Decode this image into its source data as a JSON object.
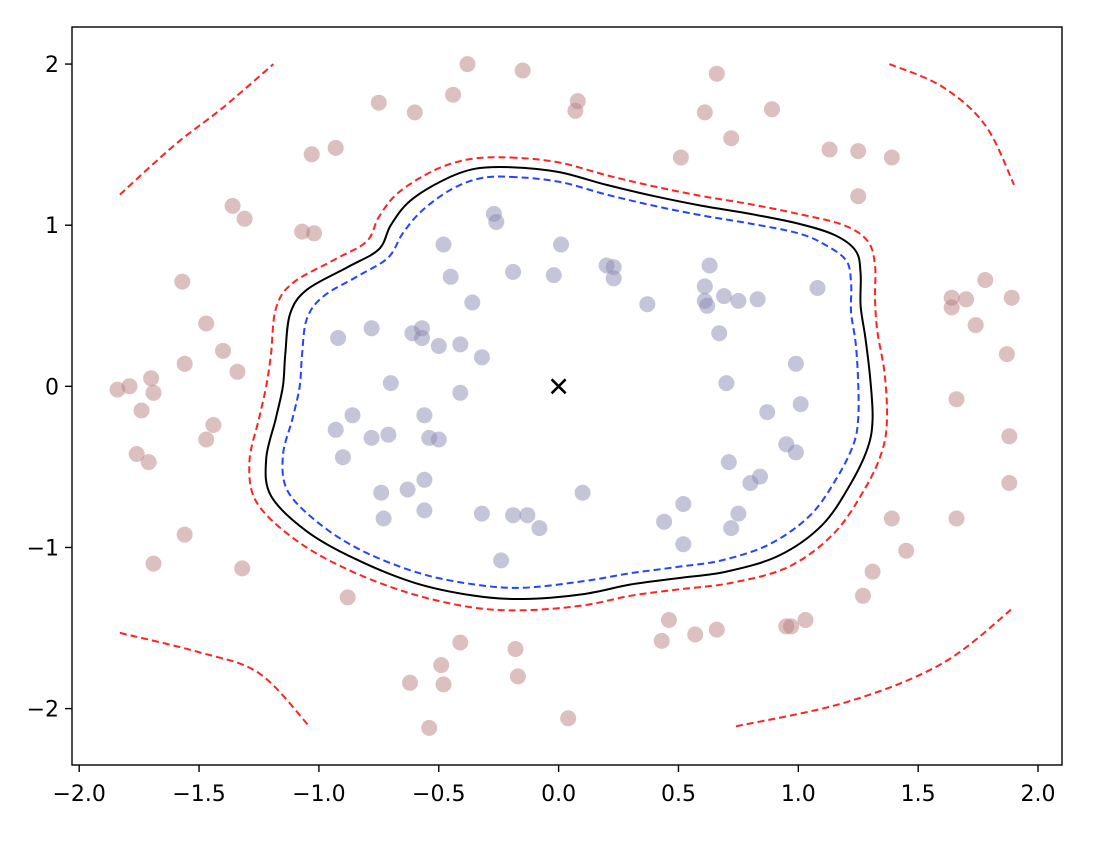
{
  "chart_data": {
    "type": "scatter",
    "title": "",
    "xlabel": "",
    "ylabel": "",
    "xlim": [
      -2.03,
      2.1
    ],
    "ylim": [
      -2.35,
      2.23
    ],
    "grid": false,
    "x_ticks": [
      {
        "value": -2.0,
        "label": "−2.0"
      },
      {
        "value": -1.5,
        "label": "−1.5"
      },
      {
        "value": -1.0,
        "label": "−1.0"
      },
      {
        "value": -0.5,
        "label": "−0.5"
      },
      {
        "value": 0.0,
        "label": "0.0"
      },
      {
        "value": 0.5,
        "label": "0.5"
      },
      {
        "value": 1.0,
        "label": "1.0"
      },
      {
        "value": 1.5,
        "label": "1.5"
      },
      {
        "value": 2.0,
        "label": "2.0"
      }
    ],
    "y_ticks": [
      {
        "value": 2,
        "label": "2"
      },
      {
        "value": 1,
        "label": "1"
      },
      {
        "value": 0,
        "label": "0"
      },
      {
        "value": -1,
        "label": "−1"
      },
      {
        "value": -2,
        "label": "−2"
      }
    ],
    "colors": {
      "inner_points": "#8C8CB4",
      "outer_points": "#B98080",
      "decision_boundary": "#000000",
      "inner_margin": "#2244FF",
      "outer_margin": "#FF2222",
      "center_marker": "#000000"
    },
    "center_marker": {
      "x": 0.0,
      "y": 0.0,
      "symbol": "x"
    },
    "series": [
      {
        "class": "inner",
        "points": [
          [
            -0.27,
            1.07
          ],
          [
            -0.26,
            1.02
          ],
          [
            -0.48,
            0.88
          ],
          [
            0.01,
            0.88
          ],
          [
            -0.19,
            0.71
          ],
          [
            -0.02,
            0.69
          ],
          [
            -0.45,
            0.68
          ],
          [
            0.2,
            0.75
          ],
          [
            0.23,
            0.74
          ],
          [
            0.23,
            0.67
          ],
          [
            0.63,
            0.75
          ],
          [
            0.61,
            0.62
          ],
          [
            0.61,
            0.53
          ],
          [
            0.62,
            0.5
          ],
          [
            0.69,
            0.56
          ],
          [
            0.75,
            0.53
          ],
          [
            0.83,
            0.54
          ],
          [
            1.08,
            0.61
          ],
          [
            0.37,
            0.51
          ],
          [
            -0.36,
            0.52
          ],
          [
            -0.92,
            0.3
          ],
          [
            -0.78,
            0.36
          ],
          [
            -0.61,
            0.33
          ],
          [
            -0.57,
            0.36
          ],
          [
            -0.57,
            0.3
          ],
          [
            -0.5,
            0.25
          ],
          [
            -0.41,
            0.26
          ],
          [
            -0.32,
            0.18
          ],
          [
            0.67,
            0.33
          ],
          [
            0.99,
            0.14
          ],
          [
            -0.7,
            0.02
          ],
          [
            -0.41,
            -0.04
          ],
          [
            0.7,
            0.02
          ],
          [
            1.01,
            -0.11
          ],
          [
            -0.86,
            -0.18
          ],
          [
            -0.56,
            -0.18
          ],
          [
            -0.93,
            -0.27
          ],
          [
            -0.78,
            -0.32
          ],
          [
            -0.71,
            -0.3
          ],
          [
            -0.54,
            -0.32
          ],
          [
            -0.5,
            -0.33
          ],
          [
            0.87,
            -0.16
          ],
          [
            -0.9,
            -0.44
          ],
          [
            0.95,
            -0.36
          ],
          [
            0.99,
            -0.41
          ],
          [
            0.71,
            -0.47
          ],
          [
            -0.74,
            -0.66
          ],
          [
            -0.63,
            -0.64
          ],
          [
            -0.56,
            -0.58
          ],
          [
            0.1,
            -0.66
          ],
          [
            0.8,
            -0.6
          ],
          [
            0.84,
            -0.56
          ],
          [
            -0.73,
            -0.82
          ],
          [
            -0.56,
            -0.77
          ],
          [
            -0.32,
            -0.79
          ],
          [
            -0.19,
            -0.8
          ],
          [
            -0.13,
            -0.8
          ],
          [
            -0.08,
            -0.88
          ],
          [
            0.44,
            -0.84
          ],
          [
            0.52,
            -0.73
          ],
          [
            0.75,
            -0.79
          ],
          [
            0.72,
            -0.88
          ],
          [
            0.52,
            -0.98
          ],
          [
            -0.24,
            -1.08
          ]
        ]
      },
      {
        "class": "outer",
        "points": [
          [
            -0.38,
            2.0
          ],
          [
            -0.15,
            1.96
          ],
          [
            0.66,
            1.94
          ],
          [
            -0.44,
            1.81
          ],
          [
            -0.75,
            1.76
          ],
          [
            -0.6,
            1.7
          ],
          [
            0.08,
            1.77
          ],
          [
            0.07,
            1.71
          ],
          [
            0.61,
            1.7
          ],
          [
            0.89,
            1.72
          ],
          [
            0.72,
            1.54
          ],
          [
            0.51,
            1.42
          ],
          [
            -1.03,
            1.44
          ],
          [
            -0.93,
            1.48
          ],
          [
            1.13,
            1.47
          ],
          [
            1.25,
            1.46
          ],
          [
            1.39,
            1.42
          ],
          [
            1.25,
            1.18
          ],
          [
            -1.36,
            1.12
          ],
          [
            -1.31,
            1.04
          ],
          [
            -1.07,
            0.96
          ],
          [
            -1.02,
            0.95
          ],
          [
            -1.57,
            0.65
          ],
          [
            -1.47,
            0.39
          ],
          [
            -1.4,
            0.22
          ],
          [
            -1.56,
            0.14
          ],
          [
            -1.34,
            0.09
          ],
          [
            -1.7,
            0.05
          ],
          [
            -1.79,
            0.0
          ],
          [
            -1.84,
            -0.02
          ],
          [
            -1.69,
            -0.04
          ],
          [
            -1.74,
            -0.15
          ],
          [
            -1.44,
            -0.24
          ],
          [
            -1.47,
            -0.33
          ],
          [
            -1.76,
            -0.42
          ],
          [
            -1.71,
            -0.47
          ],
          [
            -1.56,
            -0.92
          ],
          [
            -1.69,
            -1.1
          ],
          [
            -1.32,
            -1.13
          ],
          [
            -0.88,
            -1.31
          ],
          [
            1.64,
            0.55
          ],
          [
            1.7,
            0.54
          ],
          [
            1.64,
            0.49
          ],
          [
            1.78,
            0.66
          ],
          [
            1.74,
            0.38
          ],
          [
            1.89,
            0.55
          ],
          [
            1.87,
            0.2
          ],
          [
            1.66,
            -0.08
          ],
          [
            1.88,
            -0.31
          ],
          [
            1.88,
            -0.6
          ],
          [
            1.66,
            -0.82
          ],
          [
            1.39,
            -0.82
          ],
          [
            1.45,
            -1.02
          ],
          [
            1.31,
            -1.15
          ],
          [
            1.27,
            -1.3
          ],
          [
            1.03,
            -1.45
          ],
          [
            0.95,
            -1.49
          ],
          [
            0.97,
            -1.49
          ],
          [
            0.46,
            -1.45
          ],
          [
            0.43,
            -1.58
          ],
          [
            0.57,
            -1.54
          ],
          [
            0.66,
            -1.51
          ],
          [
            -0.41,
            -1.59
          ],
          [
            -0.18,
            -1.63
          ],
          [
            -0.49,
            -1.73
          ],
          [
            -0.17,
            -1.8
          ],
          [
            -0.62,
            -1.84
          ],
          [
            -0.48,
            -1.85
          ],
          [
            0.04,
            -2.06
          ],
          [
            -0.54,
            -2.12
          ]
        ]
      }
    ],
    "contours": [
      {
        "name": "decision_boundary",
        "style": "solid",
        "closed": true,
        "points": [
          [
            -0.2,
            1.36
          ],
          [
            0.0,
            1.33
          ],
          [
            0.2,
            1.25
          ],
          [
            0.4,
            1.18
          ],
          [
            0.6,
            1.12
          ],
          [
            0.8,
            1.07
          ],
          [
            1.0,
            1.01
          ],
          [
            1.15,
            0.94
          ],
          [
            1.24,
            0.84
          ],
          [
            1.26,
            0.7
          ],
          [
            1.26,
            0.5
          ],
          [
            1.28,
            0.3
          ],
          [
            1.3,
            0.05
          ],
          [
            1.31,
            -0.2
          ],
          [
            1.29,
            -0.38
          ],
          [
            1.22,
            -0.6
          ],
          [
            1.1,
            -0.86
          ],
          [
            0.92,
            -1.05
          ],
          [
            0.7,
            -1.15
          ],
          [
            0.5,
            -1.19
          ],
          [
            0.3,
            -1.23
          ],
          [
            0.1,
            -1.29
          ],
          [
            -0.15,
            -1.32
          ],
          [
            -0.35,
            -1.3
          ],
          [
            -0.6,
            -1.22
          ],
          [
            -0.85,
            -1.07
          ],
          [
            -1.05,
            -0.9
          ],
          [
            -1.2,
            -0.68
          ],
          [
            -1.22,
            -0.45
          ],
          [
            -1.18,
            -0.2
          ],
          [
            -1.15,
            0.0
          ],
          [
            -1.14,
            0.2
          ],
          [
            -1.12,
            0.45
          ],
          [
            -1.05,
            0.6
          ],
          [
            -0.88,
            0.74
          ],
          [
            -0.75,
            0.85
          ],
          [
            -0.7,
            1.0
          ],
          [
            -0.62,
            1.15
          ],
          [
            -0.48,
            1.28
          ],
          [
            -0.35,
            1.35
          ]
        ]
      },
      {
        "name": "inner_margin",
        "style": "dashed",
        "closed": true,
        "points": [
          [
            -0.2,
            1.3
          ],
          [
            0.0,
            1.27
          ],
          [
            0.2,
            1.19
          ],
          [
            0.4,
            1.12
          ],
          [
            0.6,
            1.06
          ],
          [
            0.8,
            1.01
          ],
          [
            1.0,
            0.95
          ],
          [
            1.11,
            0.88
          ],
          [
            1.2,
            0.78
          ],
          [
            1.22,
            0.64
          ],
          [
            1.22,
            0.46
          ],
          [
            1.24,
            0.26
          ],
          [
            1.25,
            0.02
          ],
          [
            1.25,
            -0.2
          ],
          [
            1.23,
            -0.36
          ],
          [
            1.16,
            -0.57
          ],
          [
            1.05,
            -0.8
          ],
          [
            0.88,
            -0.98
          ],
          [
            0.68,
            -1.08
          ],
          [
            0.5,
            -1.12
          ],
          [
            0.3,
            -1.16
          ],
          [
            0.1,
            -1.21
          ],
          [
            -0.15,
            -1.25
          ],
          [
            -0.35,
            -1.23
          ],
          [
            -0.58,
            -1.16
          ],
          [
            -0.82,
            -1.02
          ],
          [
            -1.0,
            -0.85
          ],
          [
            -1.13,
            -0.65
          ],
          [
            -1.15,
            -0.43
          ],
          [
            -1.11,
            -0.2
          ],
          [
            -1.08,
            0.0
          ],
          [
            -1.07,
            0.2
          ],
          [
            -1.05,
            0.42
          ],
          [
            -0.98,
            0.56
          ],
          [
            -0.83,
            0.69
          ],
          [
            -0.71,
            0.8
          ],
          [
            -0.65,
            0.95
          ],
          [
            -0.57,
            1.09
          ],
          [
            -0.45,
            1.22
          ],
          [
            -0.33,
            1.29
          ]
        ]
      },
      {
        "name": "outer_margin",
        "style": "dashed",
        "closed": true,
        "points": [
          [
            -0.2,
            1.42
          ],
          [
            0.0,
            1.39
          ],
          [
            0.2,
            1.31
          ],
          [
            0.4,
            1.24
          ],
          [
            0.6,
            1.18
          ],
          [
            0.8,
            1.13
          ],
          [
            1.0,
            1.07
          ],
          [
            1.19,
            1.0
          ],
          [
            1.29,
            0.9
          ],
          [
            1.32,
            0.75
          ],
          [
            1.32,
            0.54
          ],
          [
            1.33,
            0.34
          ],
          [
            1.36,
            0.08
          ],
          [
            1.37,
            -0.2
          ],
          [
            1.35,
            -0.4
          ],
          [
            1.28,
            -0.63
          ],
          [
            1.15,
            -0.91
          ],
          [
            0.96,
            -1.12
          ],
          [
            0.72,
            -1.22
          ],
          [
            0.5,
            -1.26
          ],
          [
            0.3,
            -1.3
          ],
          [
            0.1,
            -1.36
          ],
          [
            -0.15,
            -1.39
          ],
          [
            -0.37,
            -1.37
          ],
          [
            -0.63,
            -1.28
          ],
          [
            -0.89,
            -1.13
          ],
          [
            -1.1,
            -0.95
          ],
          [
            -1.26,
            -0.72
          ],
          [
            -1.29,
            -0.47
          ],
          [
            -1.25,
            -0.2
          ],
          [
            -1.22,
            0.0
          ],
          [
            -1.2,
            0.2
          ],
          [
            -1.18,
            0.48
          ],
          [
            -1.11,
            0.64
          ],
          [
            -0.93,
            0.79
          ],
          [
            -0.8,
            0.9
          ],
          [
            -0.75,
            1.05
          ],
          [
            -0.67,
            1.2
          ],
          [
            -0.52,
            1.34
          ],
          [
            -0.37,
            1.41
          ]
        ]
      },
      {
        "name": "outer_margin_top_left",
        "style": "dashed",
        "closed": false,
        "points": [
          [
            -1.83,
            1.19
          ],
          [
            -1.6,
            1.5
          ],
          [
            -1.4,
            1.73
          ],
          [
            -1.19,
            2.0
          ]
        ]
      },
      {
        "name": "outer_margin_top_right",
        "style": "dashed",
        "closed": false,
        "points": [
          [
            1.38,
            2.0
          ],
          [
            1.6,
            1.86
          ],
          [
            1.78,
            1.62
          ],
          [
            1.9,
            1.25
          ]
        ]
      },
      {
        "name": "outer_margin_bottom_left",
        "style": "dashed",
        "closed": false,
        "points": [
          [
            -1.83,
            -1.53
          ],
          [
            -1.5,
            -1.65
          ],
          [
            -1.25,
            -1.78
          ],
          [
            -1.04,
            -2.11
          ]
        ]
      },
      {
        "name": "outer_margin_bottom_right",
        "style": "dashed",
        "closed": false,
        "points": [
          [
            0.74,
            -2.11
          ],
          [
            1.2,
            -1.96
          ],
          [
            1.6,
            -1.72
          ],
          [
            1.9,
            -1.37
          ]
        ]
      }
    ]
  }
}
